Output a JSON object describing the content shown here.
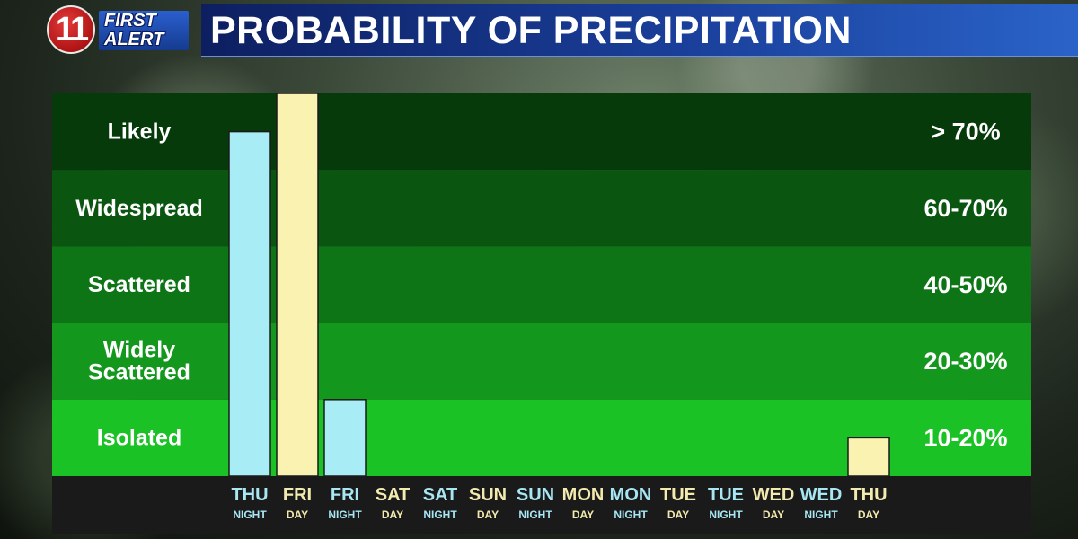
{
  "logo": {
    "number": "11",
    "line1": "FIRST",
    "line2": "ALERT"
  },
  "header": {
    "title": "PROBABILITY OF PRECIPITATION"
  },
  "colors": {
    "band_likely": "#063a0a",
    "band_widespread": "#0a5510",
    "band_scattered": "#0e7516",
    "band_widely_scattered": "#13971c",
    "band_isolated": "#1bc225",
    "night_bar": "#a8ecf6",
    "day_bar": "#f9f2b0",
    "axis_panel": "#1a1a1a",
    "day_label": "#f3eab0",
    "night_label": "#a8e6f3"
  },
  "chart_data": {
    "type": "bar",
    "title": "PROBABILITY OF PRECIPITATION",
    "categories": [
      {
        "day": "THU",
        "period": "NIGHT"
      },
      {
        "day": "FRI",
        "period": "DAY"
      },
      {
        "day": "FRI",
        "period": "NIGHT"
      },
      {
        "day": "SAT",
        "period": "DAY"
      },
      {
        "day": "SAT",
        "period": "NIGHT"
      },
      {
        "day": "SUN",
        "period": "DAY"
      },
      {
        "day": "SUN",
        "period": "NIGHT"
      },
      {
        "day": "MON",
        "period": "DAY"
      },
      {
        "day": "MON",
        "period": "NIGHT"
      },
      {
        "day": "TUE",
        "period": "DAY"
      },
      {
        "day": "TUE",
        "period": "NIGHT"
      },
      {
        "day": "WED",
        "period": "DAY"
      },
      {
        "day": "WED",
        "period": "NIGHT"
      },
      {
        "day": "THU",
        "period": "DAY"
      }
    ],
    "values": [
      90,
      100,
      20,
      0,
      0,
      0,
      0,
      0,
      0,
      0,
      0,
      0,
      0,
      10
    ],
    "ylim": [
      0,
      100
    ],
    "bands": [
      {
        "label_lines": [
          "Likely"
        ],
        "range": "> 70%"
      },
      {
        "label_lines": [
          "Widespread"
        ],
        "range": "60-70%"
      },
      {
        "label_lines": [
          "Scattered"
        ],
        "range": "40-50%"
      },
      {
        "label_lines": [
          "Widely",
          "Scattered"
        ],
        "range": "20-30%"
      },
      {
        "label_lines": [
          "Isolated"
        ],
        "range": "10-20%"
      }
    ]
  }
}
